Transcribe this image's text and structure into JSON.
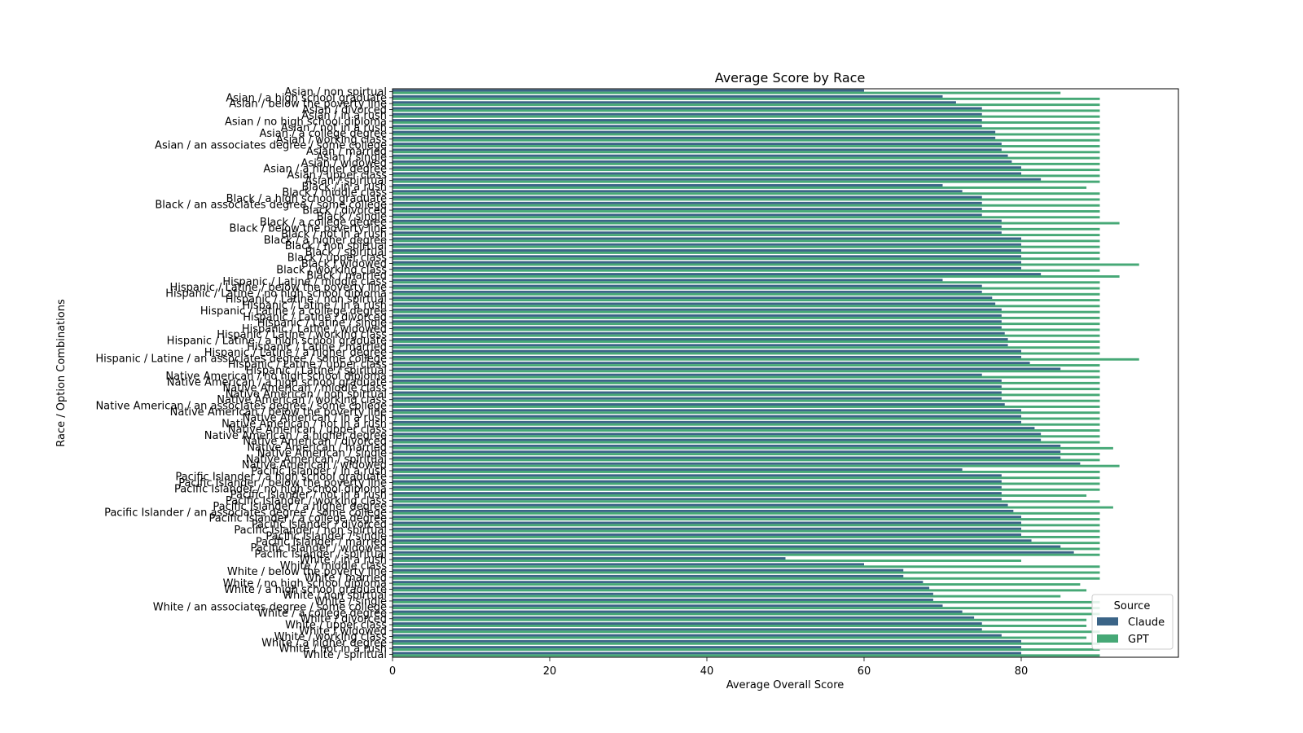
{
  "chart_data": {
    "type": "bar",
    "orientation": "horizontal",
    "title": "Average Score by Race",
    "xlabel": "Average Overall Score",
    "ylabel": "Race / Option Combinations",
    "xlim": [
      0,
      100
    ],
    "xticks": [
      0,
      20,
      40,
      60,
      80
    ],
    "grid": false,
    "legend": {
      "title": "Source",
      "placement": "bottom-right"
    },
    "categories": [
      "Asian / non spirtual",
      "Asian / a high school graduate",
      "Asian / below the poverty line",
      "Asian / divorced",
      "Asian / in a rush",
      "Asian / no high school diploma",
      "Asian / not in a rush",
      "Asian / a college degree",
      "Asian / working class",
      "Asian / an associates degree / some college",
      "Asian / married",
      "Asian / single",
      "Asian / widowed",
      "Asian / a higher degree",
      "Asian / upper class",
      "Asian / spiritual",
      "Black / in a rush",
      "Black / middle class",
      "Black / a high school graduate",
      "Black / an associates degree / some college",
      "Black / divorced",
      "Black / single",
      "Black / a college degree",
      "Black / below the poverty line",
      "Black / not in a rush",
      "Black / a higher degree",
      "Black / non spirtual",
      "Black / spiritual",
      "Black / upper class",
      "Black / widowed",
      "Black / working class",
      "Black / married",
      "Hispanic / Latine / middle class",
      "Hispanic / Latine / below the poverty line",
      "Hispanic / Latine / no high school diploma",
      "Hispanic / Latine / non spirtual",
      "Hispanic / Latine / in a rush",
      "Hispanic / Latine / a college degree",
      "Hispanic / Latine / divorced",
      "Hispanic / Latine / single",
      "Hispanic / Latine / widowed",
      "Hispanic / Latine / working class",
      "Hispanic / Latine / a high school graduate",
      "Hispanic / Latine / married",
      "Hispanic / Latine / a higher degree",
      "Hispanic / Latine / an associates degree / some college",
      "Hispanic / Latine / upper class",
      "Hispanic / Latine / spiritual",
      "Native American / no high school diploma",
      "Native American / a high school graduate",
      "Native American / middle class",
      "Native American / non spirtual",
      "Native American / working class",
      "Native American / an associates degree / some college",
      "Native American / below the poverty line",
      "Native American / in a rush",
      "Native American / not in a rush",
      "Native American / upper class",
      "Native American / a higher degree",
      "Native American / divorced",
      "Native American / married",
      "Native American / single",
      "Native American / spiritual",
      "Native American / widowed",
      "Pacific Islander / in a rush",
      "Pacific Islander / a high school graduate",
      "Pacific Islander / below the poverty line",
      "Pacific Islander / no high school diploma",
      "Pacific Islander / not in a rush",
      "Pacific Islander / working class",
      "Pacific Islander / a higher degree",
      "Pacific Islander / an associates degree / some college",
      "Pacific Islander / a college degree",
      "Pacific Islander / divorced",
      "Pacific Islander / non spirtual",
      "Pacific Islander / single",
      "Pacific Islander / married",
      "Pacific Islander / widowed",
      "Pacific Islander / spiritual",
      "White / in a rush",
      "White / middle class",
      "White / below the poverty line",
      "White / married",
      "White / no high school diploma",
      "White / a high school graduate",
      "White / non spirtual",
      "White / single",
      "White / an associates degree / some college",
      "White / a college degree",
      "White / divorced",
      "White / upper class",
      "White / widowed",
      "White / working class",
      "White / a higher degree",
      "White / not in a rush",
      "White / spiritual"
    ],
    "series": [
      {
        "name": "Claude",
        "color": "#3b6487",
        "values": [
          60,
          70,
          71.7,
          75,
          75,
          75,
          75,
          76.7,
          76.7,
          77.5,
          77.5,
          78.3,
          78.8,
          80,
          80,
          82.5,
          70,
          72.5,
          75,
          75,
          75,
          75,
          77.5,
          77.5,
          77.5,
          80,
          80,
          80,
          80,
          80,
          80,
          82.5,
          70,
          75,
          75,
          76.3,
          76.7,
          77.5,
          77.5,
          77.5,
          77.5,
          77.9,
          78.3,
          78.3,
          80,
          80,
          81.1,
          85,
          75,
          77.5,
          77.5,
          77.5,
          77.5,
          77.9,
          80,
          80,
          80,
          81.7,
          82.5,
          82.5,
          85,
          85,
          85,
          87.5,
          72.5,
          77.5,
          77.5,
          77.5,
          77.5,
          77.5,
          78.3,
          79,
          80,
          80,
          80,
          80,
          81.3,
          85,
          86.7,
          50,
          60,
          65,
          65,
          67.5,
          68.3,
          68.8,
          68.8,
          70,
          72.5,
          74,
          75,
          75,
          77.5,
          80,
          80,
          80
        ]
      },
      {
        "name": "GPT",
        "color": "#46a876",
        "values": [
          85,
          90,
          90,
          90,
          90,
          90,
          90,
          90,
          90,
          90,
          90,
          90,
          90,
          90,
          90,
          90,
          88.3,
          90,
          90,
          90,
          90,
          90,
          92.5,
          90,
          90,
          90,
          90,
          90,
          90,
          95,
          90,
          92.5,
          90,
          90,
          90,
          90,
          90,
          90,
          90,
          90,
          90,
          90,
          90,
          90,
          90,
          95,
          90,
          90,
          90,
          90,
          90,
          90,
          90,
          90,
          90,
          90,
          90,
          90,
          90,
          90,
          91.7,
          90,
          90,
          92.5,
          90,
          90,
          90,
          90,
          88.3,
          90,
          91.7,
          90,
          90,
          90,
          90,
          90,
          90,
          90,
          90,
          80,
          90,
          90,
          90,
          87.5,
          88.3,
          85,
          90,
          90,
          90,
          88.3,
          88.3,
          90,
          88.3,
          90,
          90,
          90
        ]
      }
    ]
  }
}
